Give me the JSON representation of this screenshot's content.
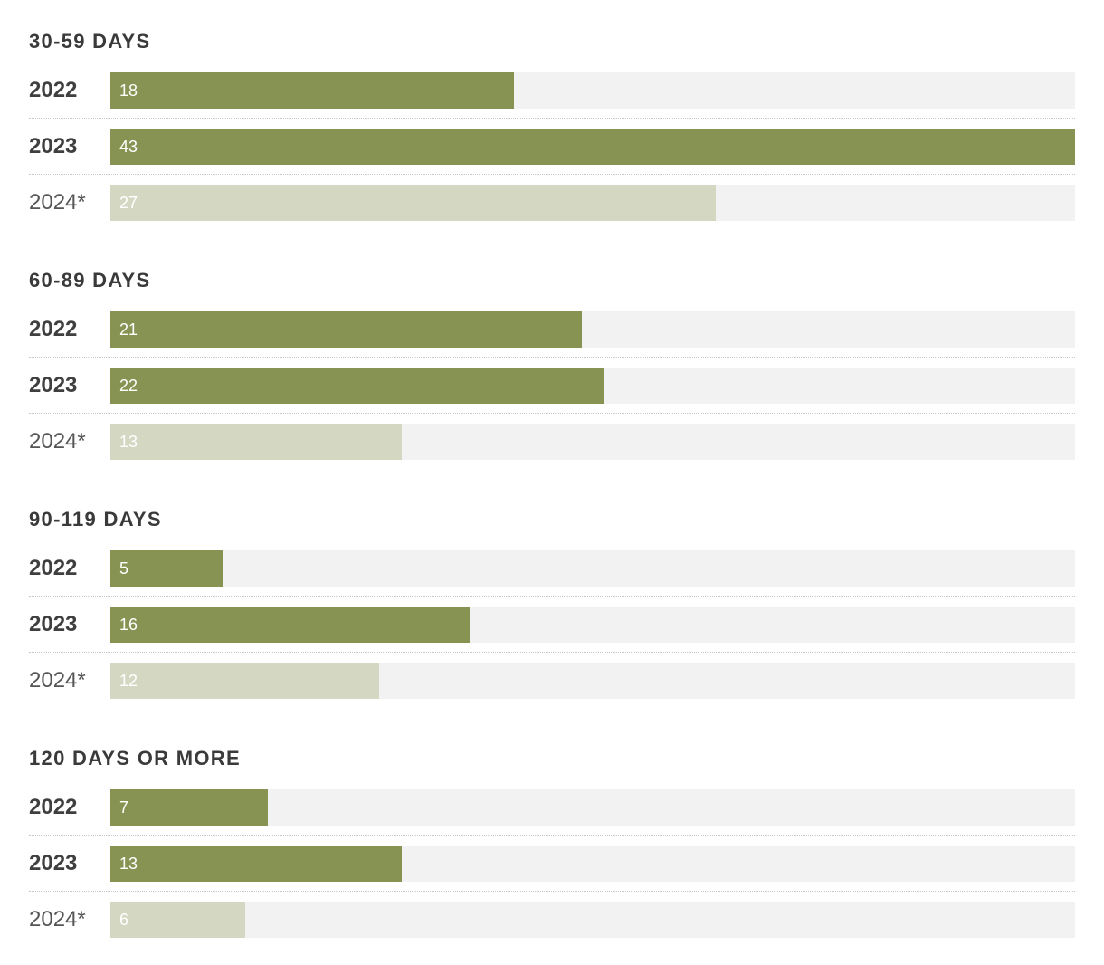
{
  "chart_data": {
    "type": "bar",
    "orientation": "horizontal",
    "grid": false,
    "legend": "none",
    "colors": {
      "primary": "#879352",
      "partial": "#d4d8c3",
      "track": "#f2f2f2",
      "text": "#3a3a3a"
    },
    "xlim": [
      0,
      43
    ],
    "groups": [
      {
        "title": "30-59 DAYS",
        "rows": [
          {
            "label": "2022",
            "value": 18,
            "partial": false
          },
          {
            "label": "2023",
            "value": 43,
            "partial": false
          },
          {
            "label": "2024*",
            "value": 27,
            "partial": true
          }
        ]
      },
      {
        "title": "60-89 DAYS",
        "rows": [
          {
            "label": "2022",
            "value": 21,
            "partial": false
          },
          {
            "label": "2023",
            "value": 22,
            "partial": false
          },
          {
            "label": "2024*",
            "value": 13,
            "partial": true
          }
        ]
      },
      {
        "title": "90-119 DAYS",
        "rows": [
          {
            "label": "2022",
            "value": 5,
            "partial": false
          },
          {
            "label": "2023",
            "value": 16,
            "partial": false
          },
          {
            "label": "2024*",
            "value": 12,
            "partial": true
          }
        ]
      },
      {
        "title": "120 DAYS OR MORE",
        "rows": [
          {
            "label": "2022",
            "value": 7,
            "partial": false
          },
          {
            "label": "2023",
            "value": 13,
            "partial": false
          },
          {
            "label": "2024*",
            "value": 6,
            "partial": true
          }
        ]
      }
    ]
  }
}
